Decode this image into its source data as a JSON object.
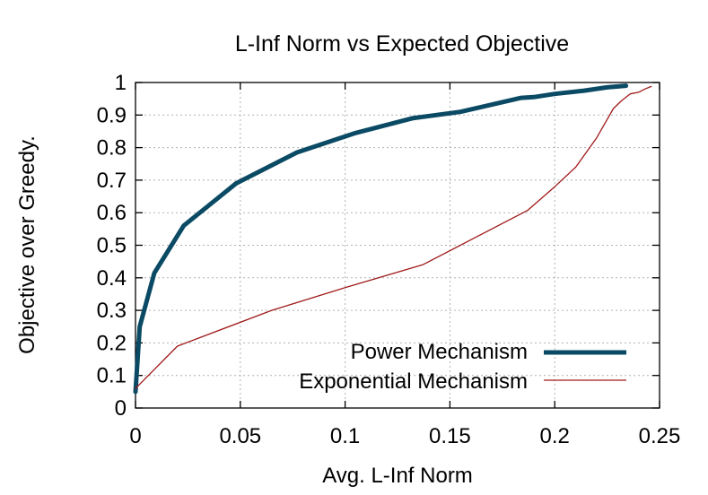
{
  "chart_data": {
    "type": "line",
    "title": "L-Inf Norm vs Expected Objective",
    "xlabel": "Avg. L-Inf Norm",
    "ylabel": "Objective over Greedy.",
    "xlim": [
      0,
      0.25
    ],
    "ylim": [
      0,
      1
    ],
    "xticks": [
      "0",
      "0.05",
      "0.1",
      "0.15",
      "0.2",
      "0.25"
    ],
    "yticks": [
      "0",
      "0.1",
      "0.2",
      "0.3",
      "0.4",
      "0.5",
      "0.6",
      "0.7",
      "0.8",
      "0.9",
      "1"
    ],
    "grid": true,
    "legend_position": "bottom-right",
    "series": [
      {
        "name": "Power Mechanism",
        "color": "#0b4a64",
        "line_width": "thick",
        "x": [
          0.0,
          0.002,
          0.009,
          0.023,
          0.048,
          0.077,
          0.105,
          0.132,
          0.155,
          0.172,
          0.184,
          0.19,
          0.2,
          0.214,
          0.225,
          0.234
        ],
        "y": [
          0.05,
          0.25,
          0.415,
          0.56,
          0.69,
          0.785,
          0.845,
          0.89,
          0.91,
          0.935,
          0.953,
          0.955,
          0.965,
          0.975,
          0.985,
          0.99
        ]
      },
      {
        "name": "Exponential Mechanism",
        "color": "#a01a1a",
        "line_width": "thin",
        "x": [
          0.0,
          0.02,
          0.065,
          0.1,
          0.137,
          0.161,
          0.187,
          0.2,
          0.21,
          0.22,
          0.228,
          0.232,
          0.236,
          0.24,
          0.243,
          0.246
        ],
        "y": [
          0.06,
          0.19,
          0.3,
          0.37,
          0.44,
          0.52,
          0.607,
          0.68,
          0.74,
          0.83,
          0.92,
          0.945,
          0.965,
          0.97,
          0.98,
          0.988
        ]
      }
    ]
  }
}
